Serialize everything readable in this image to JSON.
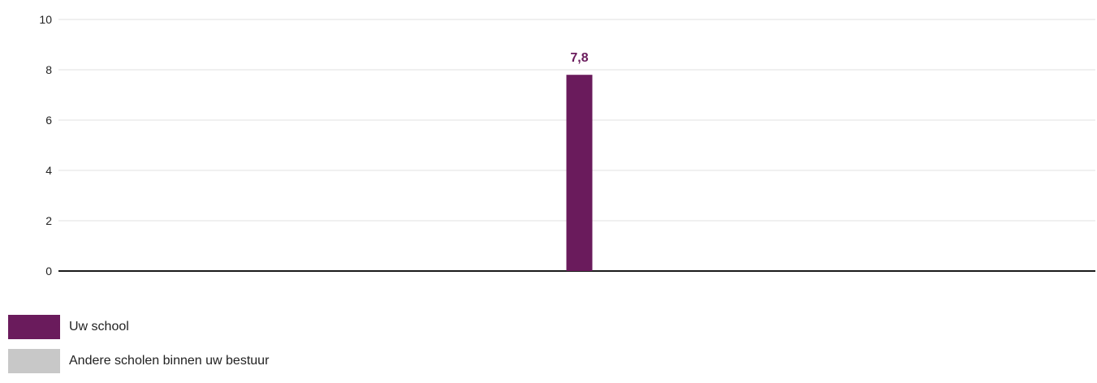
{
  "chart_data": {
    "type": "bar",
    "categories": [
      ""
    ],
    "series": [
      {
        "name": "Uw school",
        "values": [
          7.8
        ],
        "color": "#6a1b5c"
      }
    ],
    "data_labels": [
      "7,8"
    ],
    "ylim": [
      0,
      10
    ],
    "yticks": [
      0,
      2,
      4,
      6,
      8,
      10
    ],
    "grid": true,
    "legend_position": "bottom-left"
  },
  "legend": {
    "items": [
      {
        "label": "Uw school",
        "color": "#6a1b5c"
      },
      {
        "label": "Andere scholen binnen uw bestuur",
        "color": "#c8c8c8"
      }
    ]
  }
}
